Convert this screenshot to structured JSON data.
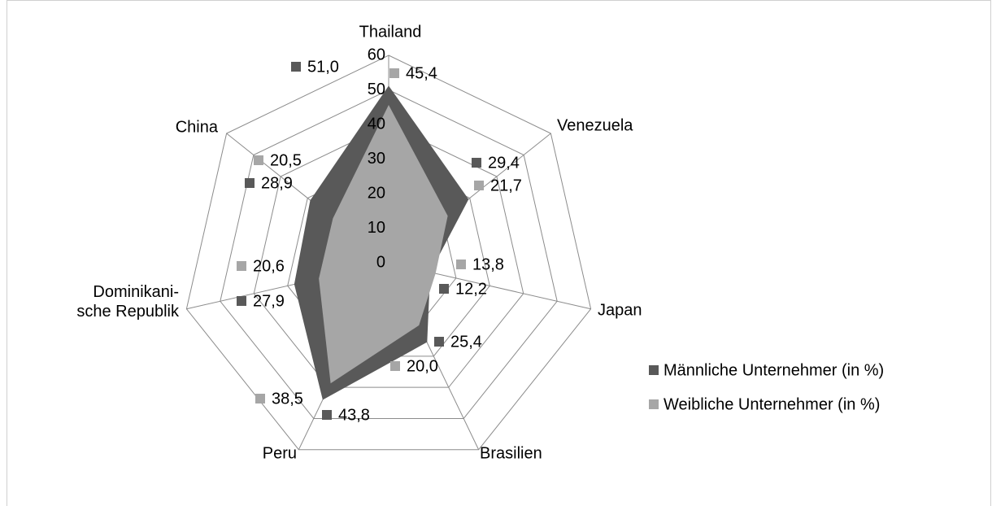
{
  "chart_data": {
    "type": "radar",
    "categories": [
      "Thailand",
      "Venezuela",
      "Japan",
      "Brasilien",
      "Peru",
      "Dominikani-\nsche Republik",
      "China"
    ],
    "series": [
      {
        "name": "Männliche Unternehmer (in %)",
        "color": "#595959",
        "values": [
          51.0,
          29.4,
          12.2,
          25.4,
          43.8,
          27.9,
          28.9
        ],
        "value_labels": [
          "51,0",
          "29,4",
          "12,2",
          "25,4",
          "43,8",
          "27,9",
          "28,9"
        ]
      },
      {
        "name": "Weibliche Unternehmer (in %)",
        "color": "#a6a6a6",
        "values": [
          45.4,
          21.7,
          13.8,
          20.0,
          38.5,
          20.6,
          20.5
        ],
        "value_labels": [
          "45,4",
          "21,7",
          "13,8",
          "20,0",
          "38,5",
          "20,6",
          "20,5"
        ]
      }
    ],
    "ylim": [
      0,
      60
    ],
    "yticks": [
      0,
      10,
      20,
      30,
      40,
      50,
      60
    ],
    "grid": true,
    "legend": "right"
  }
}
